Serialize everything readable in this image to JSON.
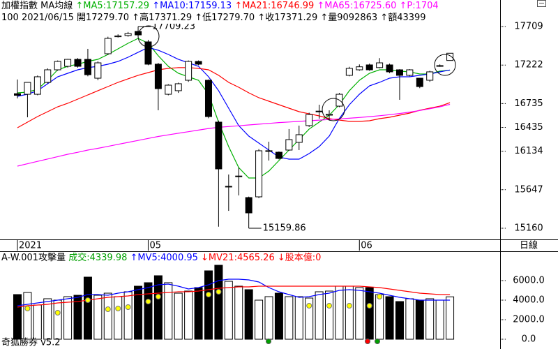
{
  "header": {
    "line1": [
      {
        "text": "加權指數",
        "color": "#000000"
      },
      {
        "text": " MA均線",
        "color": "#000000"
      },
      {
        "text": " ↑MA5:17157.29",
        "color": "#00b000"
      },
      {
        "text": " ↑MA10:17159.13",
        "color": "#0000ff"
      },
      {
        "text": " ↑MA21:16746.99",
        "color": "#ff0000"
      },
      {
        "text": " ↑MA65:16725.60",
        "color": "#ff00ff"
      },
      {
        "text": " ↑P:1704",
        "color": "#ff00ff"
      }
    ],
    "line2": [
      {
        "text": "100 2021/06/15 ",
        "color": "#000000"
      },
      {
        "text": "開17279.70",
        "color": "#000000"
      },
      {
        "text": " ↑高17371.29",
        "color": "#000000"
      },
      {
        "text": " ↑低17279.70",
        "color": "#000000"
      },
      {
        "text": " ↑收17371.29",
        "color": "#000000"
      },
      {
        "text": " ↑量9092863",
        "color": "#000000"
      },
      {
        "text": " ↑額43399",
        "color": "#000000"
      }
    ]
  },
  "volume_header": [
    {
      "text": "A-W.001攻擊量 ",
      "color": "#000000"
    },
    {
      "text": "成交:4339.98",
      "color": "#00a000"
    },
    {
      "text": " ↑MV5:4000.95",
      "color": "#0000ff"
    },
    {
      "text": " ↓MV21:4565.26",
      "color": "#ff0000"
    },
    {
      "text": " ↓股本億:0",
      "color": "#ff0000"
    }
  ],
  "period_label": "日線",
  "footer": "奇狐勝券 v5.2",
  "chart_data": [
    {
      "type": "candlestick",
      "categories": [
        "2021",
        null,
        null,
        null,
        null,
        null,
        null,
        null,
        null,
        null,
        null,
        null,
        null,
        "05",
        null,
        null,
        null,
        null,
        null,
        null,
        null,
        null,
        null,
        null,
        null,
        null,
        null,
        null,
        null,
        null,
        null,
        null,
        null,
        null,
        "06",
        null,
        null,
        null,
        null,
        null,
        null,
        null,
        null,
        null
      ],
      "open": [
        16860,
        16853,
        16853,
        17003,
        17162,
        17206,
        17294,
        17294,
        17056,
        17365,
        17580,
        17595,
        17647,
        17515,
        17233,
        16853,
        16898,
        17030,
        17268,
        17030,
        16501,
        15681,
        15813,
        15548,
        15557,
        16130,
        16121,
        16148,
        16245,
        16457,
        16633,
        16589,
        16703,
        17092,
        17162,
        17224,
        17190,
        17224,
        17162,
        17092,
        17056,
        17030,
        17206,
        17279.7
      ],
      "high": [
        17040,
        17003,
        17090,
        17180,
        17280,
        17300,
        17310,
        17427,
        17270,
        17580,
        17610,
        17640,
        17709.23,
        17540,
        17250,
        16980,
        17000,
        17280,
        17280,
        17040,
        16520,
        15839,
        15927,
        15560,
        16160,
        16254,
        16130,
        16413,
        16457,
        16620,
        16721,
        16650,
        16870,
        17200,
        17230,
        17240,
        17310,
        17240,
        17170,
        17170,
        17060,
        17150,
        17230,
        17371.29
      ],
      "low": [
        16800,
        16562,
        16840,
        16990,
        17150,
        17190,
        17190,
        17080,
        17030,
        17350,
        17570,
        17580,
        17590,
        17220,
        16651,
        16840,
        16870,
        17010,
        17220,
        16550,
        15180,
        15380,
        15575,
        15159.86,
        15540,
        16016,
        16030,
        16140,
        16148,
        16440,
        16545,
        16520,
        16690,
        17080,
        17150,
        17150,
        17180,
        17120,
        16783,
        17080,
        16930,
        17010,
        17200,
        17279.7
      ],
      "close": [
        16840,
        17003,
        17074,
        17162,
        17268,
        17294,
        17206,
        17100,
        17250,
        17559,
        17590,
        17620,
        17603,
        17233,
        16924,
        16968,
        16986,
        17268,
        17233,
        16571,
        15910,
        15690,
        15820,
        15354,
        16139,
        16140,
        16042,
        16280,
        16342,
        16598,
        16640,
        16600,
        16853,
        17180,
        17200,
        17162,
        17250,
        17136,
        17092,
        17162,
        16950,
        17136,
        17215,
        17371.29
      ],
      "up_color": "#ffffff",
      "down_color": "#000000",
      "series": [
        {
          "color": "#00b000",
          "values": [
            16871,
            16880,
            16915,
            17030,
            17162,
            17206,
            17233,
            17268,
            17294,
            17356,
            17427,
            17497,
            17559,
            17497,
            17339,
            17206,
            17118,
            17074,
            17030,
            16853,
            16501,
            16192,
            15927,
            15795,
            15795,
            15883,
            16016,
            16148,
            16280,
            16413,
            16501,
            16589,
            16721,
            16898,
            17030,
            17118,
            17162,
            17162,
            17145,
            17136,
            17109,
            17109,
            17145,
            17157.29
          ]
        },
        {
          "color": "#0000ff",
          "values": [
            16827,
            16853,
            16898,
            16986,
            17074,
            17118,
            17162,
            17189,
            17206,
            17233,
            17268,
            17321,
            17383,
            17444,
            17409,
            17356,
            17294,
            17250,
            17206,
            17074,
            16898,
            16677,
            16457,
            16324,
            16236,
            16148,
            16060,
            16033,
            16033,
            16104,
            16192,
            16324,
            16545,
            16721,
            16853,
            16959,
            17003,
            17056,
            17074,
            17074,
            17092,
            17109,
            17136,
            17159.13
          ]
        },
        {
          "color": "#ff0000",
          "values": [
            16430,
            16501,
            16571,
            16633,
            16695,
            16739,
            16792,
            16845,
            16898,
            16950,
            17003,
            17048,
            17092,
            17127,
            17162,
            17180,
            17189,
            17189,
            17180,
            17162,
            17092,
            17003,
            16942,
            16871,
            16809,
            16765,
            16721,
            16677,
            16633,
            16606,
            16580,
            16545,
            16527,
            16510,
            16510,
            16518,
            16545,
            16562,
            16589,
            16615,
            16651,
            16677,
            16703,
            16746.99
          ]
        },
        {
          "color": "#ff00ff",
          "values": [
            15945,
            15975,
            16005,
            16035,
            16065,
            16095,
            16120,
            16148,
            16170,
            16195,
            16220,
            16245,
            16270,
            16295,
            16320,
            16340,
            16360,
            16380,
            16400,
            16420,
            16435,
            16445,
            16455,
            16465,
            16475,
            16485,
            16495,
            16502,
            16510,
            16518,
            16526,
            16534,
            16542,
            16550,
            16560,
            16570,
            16582,
            16595,
            16610,
            16628,
            16648,
            16670,
            16695,
            16725.6
          ]
        }
      ],
      "annotations": [
        "17709.23",
        "15159.86"
      ],
      "ylim": [
        15019,
        18044
      ],
      "yticks": [
        17709,
        17222,
        16735,
        16435,
        16134,
        15647,
        15160
      ],
      "grid": false
    },
    {
      "type": "bar",
      "values": [
        4571,
        4786,
        3500,
        4143,
        4000,
        4357,
        4500,
        6357,
        4500,
        4714,
        4357,
        4857,
        5429,
        5786,
        6500,
        5786,
        4714,
        4929,
        5286,
        7000,
        7571,
        5929,
        5429,
        5071,
        4000,
        4357,
        4714,
        4357,
        4357,
        4214,
        4857,
        4929,
        5429,
        5429,
        5286,
        5286,
        4571,
        4357,
        3857,
        4143,
        4000,
        4143,
        4000,
        4339.98
      ],
      "up_color": "#ffffff",
      "down_color": "#000000",
      "series": [
        {
          "color": "#0000ff",
          "values": [
            3429,
            3571,
            3714,
            3857,
            4000,
            4143,
            4286,
            4571,
            4571,
            4500,
            4714,
            4857,
            5071,
            5286,
            5571,
            5643,
            5429,
            5143,
            5286,
            5571,
            6000,
            6143,
            6143,
            6071,
            5857,
            5286,
            4857,
            4571,
            4286,
            4357,
            4571,
            4714,
            5000,
            5071,
            5000,
            4857,
            4714,
            4500,
            4286,
            4143,
            4000,
            4000,
            4000,
            4000.95
          ]
        },
        {
          "color": "#ff0000",
          "values": [
            3286,
            3429,
            3500,
            3571,
            3714,
            3786,
            3857,
            4000,
            4143,
            4286,
            4357,
            4429,
            4571,
            4643,
            4714,
            4786,
            4857,
            4857,
            4929,
            5071,
            5214,
            5286,
            5357,
            5357,
            5429,
            5429,
            5429,
            5429,
            5429,
            5429,
            5429,
            5429,
            5429,
            5429,
            5429,
            5357,
            5286,
            5143,
            5000,
            4857,
            4714,
            4643,
            4571,
            4565.26
          ]
        }
      ],
      "dots": {
        "color": "#ffff00",
        "values": [
          null,
          3143,
          null,
          null,
          2714,
          null,
          null,
          4000,
          null,
          3071,
          3143,
          3286,
          null,
          3857,
          4357,
          null,
          null,
          null,
          null,
          4571,
          4857,
          null,
          null,
          null,
          null,
          null,
          null,
          null,
          null,
          3429,
          null,
          3429,
          null,
          3429,
          null,
          3429,
          4357,
          null,
          null,
          null,
          null,
          null,
          null,
          null
        ]
      },
      "ylim": [
        -286,
        8143
      ],
      "yticks": [
        {
          "value": 6000,
          "label": "6000.0"
        },
        {
          "value": 4000,
          "label": "4000.0"
        },
        {
          "value": 2000,
          "label": "2000.0"
        },
        {
          "value": 0,
          "label": "0.0"
        }
      ]
    }
  ]
}
